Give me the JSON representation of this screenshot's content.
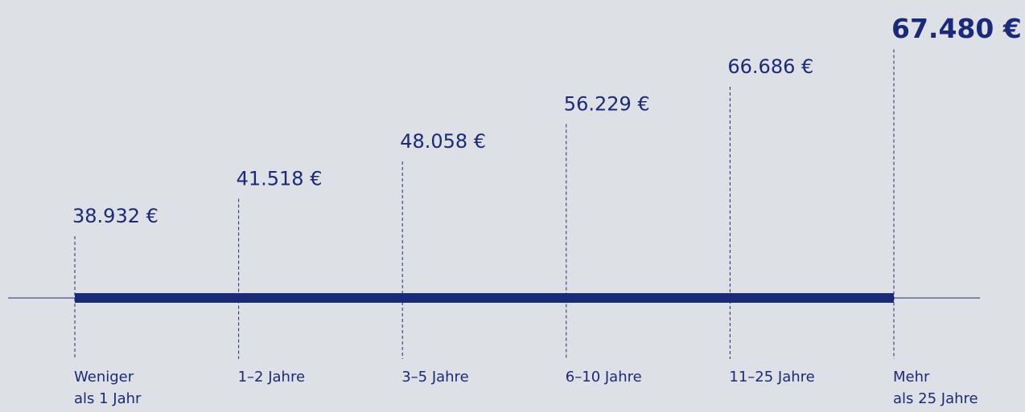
{
  "chart_data": {
    "type": "timeline",
    "categories": [
      [
        "Weniger",
        "als 1 Jahr"
      ],
      [
        "1–2 Jahre"
      ],
      [
        "3–5 Jahre"
      ],
      [
        "6–10 Jahre"
      ],
      [
        "11–25 Jahre"
      ],
      [
        "Mehr",
        "als 25 Jahre"
      ]
    ],
    "values": [
      38932,
      41518,
      48058,
      56229,
      66686,
      67480
    ],
    "value_labels": [
      "38.932 €",
      "41.518 €",
      "48.058 €",
      "56.229 €",
      "66.686 €",
      "67.480 €"
    ],
    "color": "#1b2a78"
  }
}
